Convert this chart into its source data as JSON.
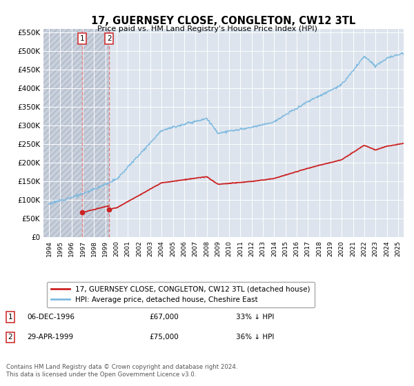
{
  "title": "17, GUERNSEY CLOSE, CONGLETON, CW12 3TL",
  "subtitle": "Price paid vs. HM Land Registry's House Price Index (HPI)",
  "hpi_label": "HPI: Average price, detached house, Cheshire East",
  "price_label": "17, GUERNSEY CLOSE, CONGLETON, CW12 3TL (detached house)",
  "legend_note": "Contains HM Land Registry data © Crown copyright and database right 2024.\nThis data is licensed under the Open Government Licence v3.0.",
  "transactions": [
    {
      "id": 1,
      "date": "06-DEC-1996",
      "price": 67000,
      "pct": "33%",
      "direction": "↓",
      "x_year": 1996.92
    },
    {
      "id": 2,
      "date": "29-APR-1999",
      "price": 75000,
      "pct": "36%",
      "direction": "↓",
      "x_year": 1999.33
    }
  ],
  "hpi_color": "#7db9e0",
  "price_color": "#cc2222",
  "vline_color": "#e08080",
  "background_plot": "#dde4ed",
  "background_hatch": "#c8d0dc",
  "ylim": [
    0,
    560000
  ],
  "xlim_start": 1993.5,
  "xlim_end": 2025.5,
  "yticks": [
    0,
    50000,
    100000,
    150000,
    200000,
    250000,
    300000,
    350000,
    400000,
    450000,
    500000,
    550000
  ],
  "xticks": [
    1994,
    1995,
    1996,
    1997,
    1998,
    1999,
    2000,
    2001,
    2002,
    2003,
    2004,
    2005,
    2006,
    2007,
    2008,
    2009,
    2010,
    2011,
    2012,
    2013,
    2014,
    2015,
    2016,
    2017,
    2018,
    2019,
    2020,
    2021,
    2022,
    2023,
    2024,
    2025
  ]
}
